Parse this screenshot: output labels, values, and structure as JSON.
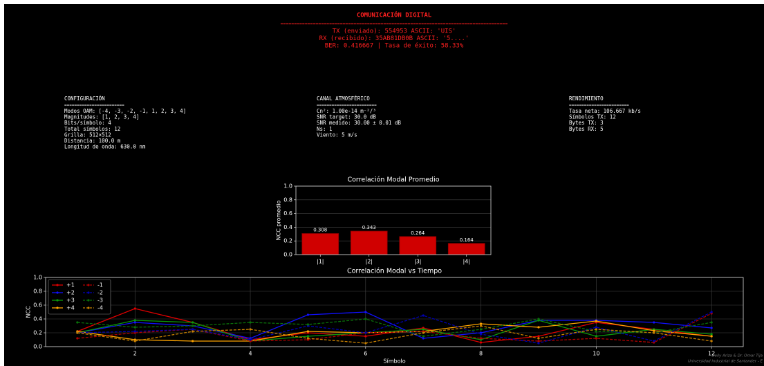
{
  "header": {
    "title": "COMUNICACIÓN DIGITAL",
    "rule": "====================================================================================",
    "lines": [
      "TX (enviado):  554953  ASCII: 'UIS'",
      "RX (recibido): 35AB81DB0B  ASCII: '5....'",
      "BER: 0.416667  |  Tasa de éxito: 58.33%"
    ]
  },
  "panels": [
    {
      "title": "CONFIGURACIÓN",
      "rule": "========================",
      "lines": [
        "Modos OAM: [-4, -3, -2, -1, 1, 2, 3, 4]",
        "Magnitudes: [1, 2, 3, 4]",
        "Bits/símbolo: 4",
        "Total símbolos: 12",
        "Grilla: 512×512",
        "Distancia: 100.0 m",
        "Longitud de onda: 630.0 nm"
      ]
    },
    {
      "title": "CANAL ATMOSFÉRICO",
      "rule": "========================",
      "lines": [
        "Cn²: 1.00e-14 m⁻²/³",
        "SNR target: 30.0 dB",
        "SNR medido: 30.00 ± 0.01 dB",
        "Ns: 1",
        "Viento: 5 m/s"
      ]
    },
    {
      "title": "RENDIMIENTO",
      "rule": "========================",
      "lines": [
        "Tasa neta: 106.667 kb/s",
        "Símbolos TX: 12",
        "Bytes TX: 3",
        "Bytes RX: 5"
      ]
    }
  ],
  "chart_data": [
    {
      "type": "bar",
      "title": "Correlación Modal Promedio",
      "ylabel": "NCC promedio",
      "categories": [
        "|1|",
        "|2|",
        "|3|",
        "|4|"
      ],
      "values": [
        0.308,
        0.343,
        0.264,
        0.164
      ],
      "color": "#d00000",
      "ylim": [
        0,
        1
      ],
      "yticks": [
        {
          "value": 0,
          "label": "0.0"
        },
        0.2,
        0.4,
        0.6,
        0.8,
        {
          "value": 1,
          "label": "1.0"
        }
      ],
      "grid": true
    },
    {
      "type": "line",
      "title": "Correlación Modal vs Tiempo",
      "xlabel": "Símbolo",
      "ylabel": "NCC",
      "x": [
        1,
        2,
        3,
        4,
        5,
        6,
        7,
        8,
        9,
        10,
        11,
        12
      ],
      "xlim": [
        0.45,
        12.55
      ],
      "xticks": [
        2,
        4,
        6,
        8,
        10,
        12
      ],
      "ylim": [
        0,
        1
      ],
      "yticks": [
        {
          "value": 0,
          "label": "0.0"
        },
        0.2,
        0.4,
        0.6,
        0.8,
        {
          "value": 1,
          "label": "1.0"
        }
      ],
      "grid": true,
      "legend": "upper left",
      "series": [
        {
          "name": "+1",
          "color": "#e00000",
          "linestyle": "solid",
          "values": [
            0.22,
            0.55,
            0.35,
            0.1,
            0.2,
            0.15,
            0.27,
            0.06,
            0.15,
            0.35,
            0.25,
            0.15
          ]
        },
        {
          "name": "+2",
          "color": "#1010ff",
          "linestyle": "solid",
          "values": [
            0.2,
            0.35,
            0.3,
            0.12,
            0.46,
            0.5,
            0.12,
            0.2,
            0.38,
            0.38,
            0.35,
            0.27
          ]
        },
        {
          "name": "+3",
          "color": "#0a9a0a",
          "linestyle": "solid",
          "values": [
            0.2,
            0.38,
            0.35,
            0.08,
            0.15,
            0.2,
            0.25,
            0.1,
            0.38,
            0.15,
            0.25,
            0.18
          ]
        },
        {
          "name": "+4",
          "color": "#ffa500",
          "linestyle": "solid",
          "values": [
            0.22,
            0.1,
            0.08,
            0.08,
            0.22,
            0.2,
            0.22,
            0.33,
            0.28,
            0.37,
            0.23,
            0.15
          ]
        },
        {
          "name": "-1",
          "color": "#b00000",
          "linestyle": "dashed",
          "values": [
            0.12,
            0.2,
            0.25,
            0.08,
            0.1,
            0.2,
            0.22,
            0.12,
            0.08,
            0.12,
            0.06,
            0.48
          ]
        },
        {
          "name": "-2",
          "color": "#0000b0",
          "linestyle": "dashed",
          "values": [
            0.2,
            0.22,
            0.25,
            0.1,
            0.3,
            0.2,
            0.45,
            0.18,
            0.05,
            0.28,
            0.08,
            0.5
          ]
        },
        {
          "name": "-3",
          "color": "#0a700a",
          "linestyle": "dashed",
          "values": [
            0.35,
            0.28,
            0.3,
            0.35,
            0.32,
            0.4,
            0.15,
            0.25,
            0.4,
            0.22,
            0.2,
            0.35
          ]
        },
        {
          "name": "-4",
          "color": "#c88000",
          "linestyle": "dashed",
          "values": [
            0.2,
            0.08,
            0.22,
            0.25,
            0.12,
            0.05,
            0.2,
            0.3,
            0.12,
            0.25,
            0.2,
            0.08
          ]
        }
      ]
    }
  ],
  "footer": {
    "lines": [
      "Deily Ariza & Dr. Omar Tíja",
      "Universidad Industrial de Santander - E"
    ]
  }
}
